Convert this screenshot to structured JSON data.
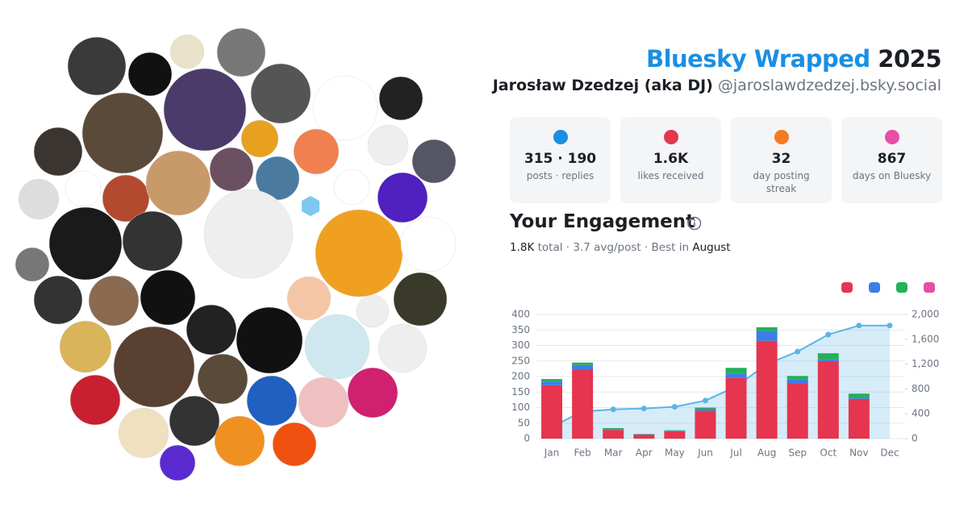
{
  "header": {
    "brand": "Bluesky Wrapped",
    "year": "2025",
    "name": "Jarosław Dzedzej (aka DJ)",
    "handle": "@jaroslawdzedzej.bsky.social"
  },
  "stats": [
    {
      "value": "315 · 190",
      "label": "posts · replies",
      "color": "#1a8fe3"
    },
    {
      "value": "1.6K",
      "label": "likes received",
      "color": "#e5354f"
    },
    {
      "value": "32",
      "label": "day posting streak",
      "color": "#f47b20"
    },
    {
      "value": "867",
      "label": "days on Bluesky",
      "color": "#e64fa6"
    }
  ],
  "engagement": {
    "title": "Your Engagement",
    "total": "1.8K",
    "middle": "total · 3.7 avg/post · Best in",
    "best": "August"
  },
  "chart_data": {
    "type": "bar",
    "stacked": true,
    "categories": [
      "Jan",
      "Feb",
      "Mar",
      "Apr",
      "May",
      "Jun",
      "Jul",
      "Aug",
      "Sep",
      "Oct",
      "Nov",
      "Dec"
    ],
    "series": [
      {
        "color": "#e5354f",
        "values": [
          172,
          222,
          28,
          13,
          24,
          90,
          195,
          315,
          178,
          250,
          128,
          0
        ]
      },
      {
        "color": "#3d7de6",
        "values": [
          12,
          15,
          3,
          1,
          1,
          6,
          15,
          32,
          12,
          5,
          3,
          0
        ]
      },
      {
        "color": "#22b05a",
        "values": [
          8,
          8,
          3,
          1,
          2,
          4,
          18,
          12,
          12,
          20,
          14,
          0
        ]
      },
      {
        "color": "#e64fa6",
        "values": [
          0,
          0,
          0,
          0,
          0,
          0,
          0,
          0,
          0,
          0,
          0,
          0
        ]
      },
      {
        "type": "line",
        "axis": "y2",
        "color": "#5bb4e6",
        "values": [
          192,
          437,
          471,
          486,
          513,
          613,
          841,
          1200,
          1402,
          1677,
          1822,
          1822
        ]
      }
    ],
    "ylim": [
      0,
      400
    ],
    "yticks": [
      0,
      50,
      100,
      150,
      200,
      250,
      300,
      350,
      400
    ],
    "y2lim": [
      0,
      2000
    ],
    "y2ticks": [
      0,
      400,
      800,
      {
        "value": 1200,
        "label": "1,200"
      },
      {
        "value": 1600,
        "label": "1,600"
      },
      {
        "value": 2000,
        "label": "2,000"
      }
    ],
    "grid": true
  }
}
